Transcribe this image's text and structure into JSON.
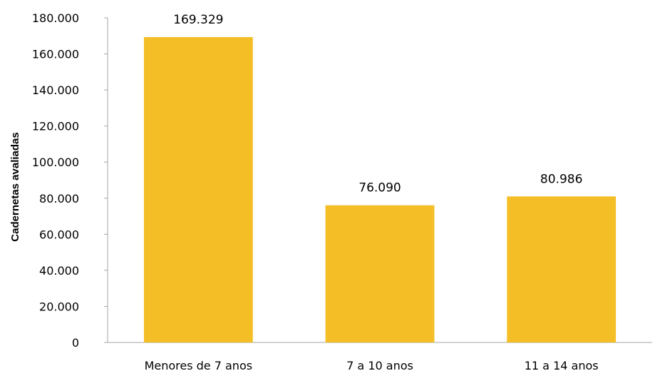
{
  "chart_data": {
    "type": "bar",
    "categories": [
      "Menores de 7 anos",
      "7 a 10 anos",
      "11 a 14 anos"
    ],
    "values": [
      169329,
      76090,
      80986
    ],
    "value_labels": [
      "169.329",
      "76.090",
      "80.986"
    ],
    "title": "",
    "xlabel": "",
    "ylabel": "Cadernetas avaliadas",
    "ylim": [
      0,
      180000
    ],
    "yticks": [
      0,
      20000,
      40000,
      60000,
      80000,
      100000,
      120000,
      140000,
      160000,
      180000
    ],
    "ytick_labels": [
      "0",
      "20.000",
      "40.000",
      "60.000",
      "80.000",
      "100.000",
      "120.000",
      "140.000",
      "160.000",
      "180.000"
    ],
    "grid": false,
    "legend": "none",
    "bar_color": "#F4BE26",
    "axis_color": "#A6A6A6"
  }
}
